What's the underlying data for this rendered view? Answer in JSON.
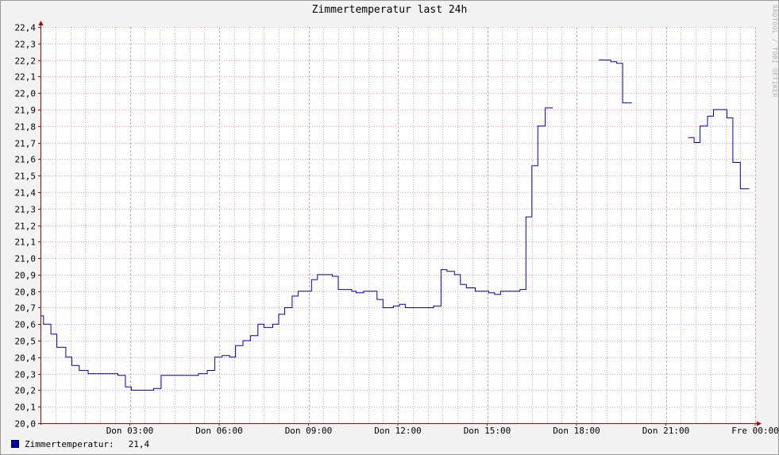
{
  "chart_data": {
    "type": "line",
    "title": "Zimmertemperatur last 24h",
    "watermark": "RRDTOOL / TOBI OETIKER",
    "ylim": [
      20.0,
      22.4
    ],
    "y_ticks": [
      "20,0",
      "20,1",
      "20,2",
      "20,3",
      "20,4",
      "20,5",
      "20,6",
      "20,7",
      "20,8",
      "20,9",
      "21,0",
      "21,1",
      "21,2",
      "21,3",
      "21,4",
      "21,5",
      "21,6",
      "21,7",
      "21,8",
      "21,9",
      "22,0",
      "22,1",
      "22,2",
      "22,3",
      "22,4"
    ],
    "x_ticks": [
      "Don 03:00",
      "Don 06:00",
      "Don 09:00",
      "Don 12:00",
      "Don 15:00",
      "Don 18:00",
      "Don 21:00",
      "Fre 00:00"
    ],
    "x_range_hours": [
      0,
      24
    ],
    "grid": true,
    "legend_position": "bottom-left",
    "colors": {
      "series": "#0000cc",
      "grid": "#e8a0a0",
      "axis": "#b00000",
      "plot_bg": "#ffffff",
      "canvas_bg": "#f3f3f3"
    },
    "series": [
      {
        "name": "Zimmertemperatur",
        "last_value": "21,4",
        "segments": [
          [
            [
              0.0,
              20.65
            ],
            [
              0.1,
              20.6
            ],
            [
              0.35,
              20.54
            ],
            [
              0.55,
              20.46
            ],
            [
              0.85,
              20.4
            ],
            [
              1.05,
              20.35
            ],
            [
              1.3,
              20.32
            ],
            [
              1.6,
              20.3
            ],
            [
              2.6,
              20.29
            ],
            [
              2.85,
              20.22
            ],
            [
              3.05,
              20.2
            ],
            [
              3.8,
              20.21
            ],
            [
              4.05,
              20.29
            ],
            [
              5.3,
              20.3
            ],
            [
              5.6,
              20.32
            ],
            [
              5.85,
              20.4
            ],
            [
              6.1,
              20.41
            ],
            [
              6.35,
              20.4
            ],
            [
              6.55,
              20.47
            ],
            [
              6.8,
              20.5
            ],
            [
              7.05,
              20.53
            ],
            [
              7.3,
              20.6
            ],
            [
              7.5,
              20.58
            ],
            [
              7.8,
              20.6
            ],
            [
              8.0,
              20.66
            ],
            [
              8.2,
              20.7
            ],
            [
              8.45,
              20.77
            ],
            [
              8.65,
              20.8
            ],
            [
              9.1,
              20.87
            ],
            [
              9.3,
              20.9
            ],
            [
              9.8,
              20.89
            ],
            [
              10.0,
              20.81
            ],
            [
              10.45,
              20.8
            ],
            [
              10.6,
              20.79
            ],
            [
              10.85,
              20.8
            ],
            [
              11.3,
              20.75
            ],
            [
              11.5,
              20.7
            ],
            [
              11.85,
              20.71
            ],
            [
              12.05,
              20.72
            ],
            [
              12.25,
              20.7
            ],
            [
              13.2,
              20.71
            ],
            [
              13.45,
              20.93
            ],
            [
              13.65,
              20.92
            ],
            [
              13.9,
              20.9
            ],
            [
              14.1,
              20.84
            ],
            [
              14.3,
              20.82
            ],
            [
              14.6,
              20.8
            ],
            [
              15.05,
              20.79
            ],
            [
              15.25,
              20.78
            ],
            [
              15.45,
              20.8
            ],
            [
              16.1,
              20.81
            ],
            [
              16.3,
              21.25
            ],
            [
              16.5,
              21.56
            ],
            [
              16.7,
              21.8
            ],
            [
              16.95,
              21.91
            ],
            [
              17.1,
              21.91
            ]
          ],
          [
            [
              18.75,
              22.2
            ],
            [
              19.15,
              22.19
            ],
            [
              19.35,
              22.18
            ],
            [
              19.55,
              21.94
            ],
            [
              19.75,
              21.94
            ]
          ],
          [
            [
              21.75,
              21.73
            ],
            [
              21.95,
              21.7
            ],
            [
              22.15,
              21.8
            ],
            [
              22.4,
              21.86
            ],
            [
              22.6,
              21.9
            ],
            [
              23.05,
              21.85
            ],
            [
              23.25,
              21.58
            ],
            [
              23.5,
              21.42
            ],
            [
              23.7,
              21.42
            ]
          ]
        ]
      }
    ]
  }
}
